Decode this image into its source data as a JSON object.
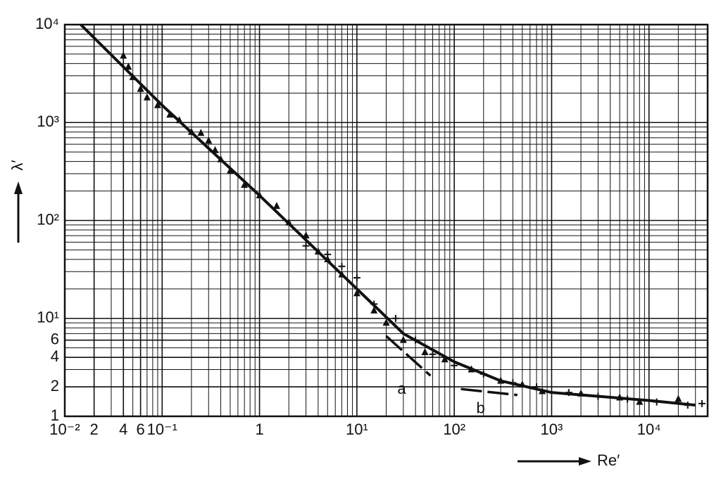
{
  "chart_data": {
    "type": "scatter",
    "x_label": "Re′",
    "y_label": "λ′",
    "xscale": "log",
    "yscale": "log",
    "grid": true,
    "minor_grid": true,
    "xlim": [
      0.01,
      40000
    ],
    "ylim": [
      1,
      10000
    ],
    "xticks": [
      {
        "value": 0.01,
        "label": "10⁻²"
      },
      {
        "value": 0.02,
        "label": "2"
      },
      {
        "value": 0.04,
        "label": "4"
      },
      {
        "value": 0.06,
        "label": "6"
      },
      {
        "value": 0.1,
        "label": "10⁻¹"
      },
      1,
      {
        "value": 10,
        "label": "10¹"
      },
      {
        "value": 100,
        "label": "10²"
      },
      {
        "value": 1000,
        "label": "10³"
      },
      {
        "value": 10000,
        "label": "10⁴"
      }
    ],
    "yticks": [
      1,
      2,
      4,
      6,
      {
        "value": 10,
        "label": "10¹"
      },
      {
        "value": 100,
        "label": "10²"
      },
      {
        "value": 1000,
        "label": "10³"
      },
      {
        "value": 10000,
        "label": "10⁴"
      }
    ],
    "curve": {
      "color": "#111111",
      "x": [
        0.0146,
        0.1,
        1,
        10,
        30,
        100,
        300,
        1000,
        10000,
        30000
      ],
      "y": [
        10000,
        1500,
        180,
        20,
        7,
        3.6,
        2.3,
        1.75,
        1.45,
        1.3
      ]
    },
    "asymptotes": [
      {
        "label": "a",
        "x": [
          20,
          57
        ],
        "y": [
          6.6,
          2.6
        ]
      },
      {
        "label": "b",
        "x": [
          117,
          445
        ],
        "y": [
          1.9,
          1.65
        ]
      }
    ],
    "series": [
      {
        "marker": "triangle",
        "color": "#111111",
        "x": [
          0.04,
          0.045,
          0.05,
          0.06,
          0.07,
          0.09,
          0.12,
          0.15,
          0.2,
          0.25,
          0.3,
          0.35,
          0.4,
          0.5,
          0.7,
          1,
          1.5,
          2,
          3,
          4,
          5,
          7,
          10,
          15,
          20,
          30,
          50,
          80,
          150,
          300,
          500,
          800,
          2000,
          5000,
          8000,
          20000
        ],
        "values": [
          4800,
          3700,
          2900,
          2200,
          1800,
          1500,
          1200,
          1050,
          800,
          780,
          650,
          520,
          420,
          320,
          230,
          180,
          140,
          95,
          70,
          48,
          40,
          28,
          18,
          12,
          9,
          6,
          4.5,
          3.8,
          3,
          2.3,
          2.1,
          1.8,
          1.7,
          1.55,
          1.4,
          1.5
        ]
      },
      {
        "marker": "plus",
        "color": "#111111",
        "x": [
          3,
          5,
          7,
          10,
          15,
          25,
          40,
          60,
          100,
          200,
          400,
          700,
          1500,
          3000,
          6000,
          12000,
          25000,
          35000
        ],
        "values": [
          55,
          45,
          34,
          26,
          14,
          10,
          6,
          4.3,
          3.3,
          2.7,
          2.2,
          2,
          1.75,
          1.6,
          1.5,
          1.4,
          1.3,
          1.35
        ]
      }
    ]
  }
}
